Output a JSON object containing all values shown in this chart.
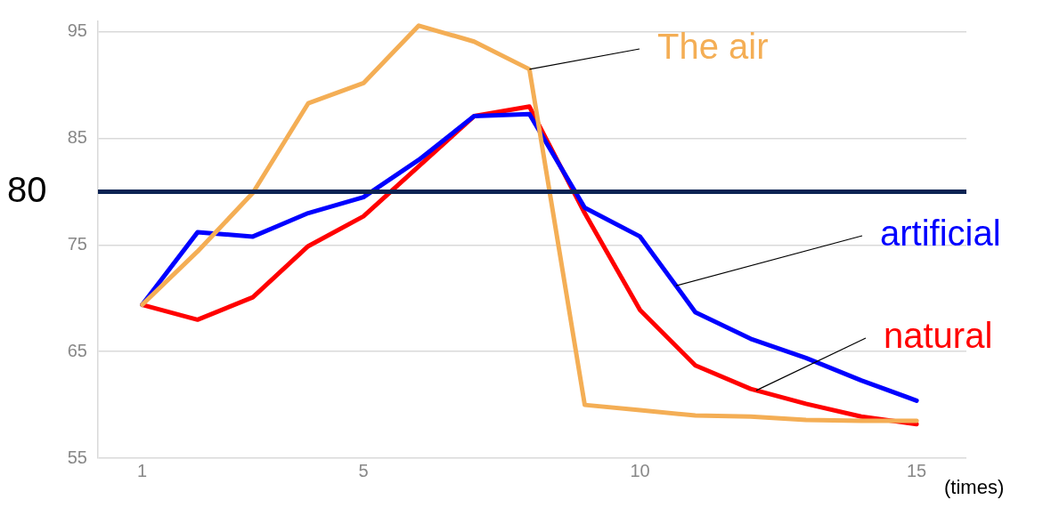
{
  "chart_data": {
    "type": "line",
    "xlabel": "(times)",
    "x": [
      1,
      2,
      3,
      4,
      5,
      6,
      7,
      8,
      9,
      10,
      11,
      12,
      13,
      14,
      15
    ],
    "series": [
      {
        "name": "The air",
        "color": "#f4ae55",
        "values": [
          69.4,
          74.4,
          79.9,
          88.3,
          90.2,
          95.6,
          94.1,
          91.5,
          60.0,
          59.5,
          59.0,
          58.9,
          58.6,
          58.5,
          58.5
        ]
      },
      {
        "name": "artificial",
        "color": "#0000ff",
        "values": [
          69.4,
          76.2,
          75.8,
          78.0,
          79.5,
          83.0,
          87.1,
          87.3,
          78.5,
          75.8,
          68.7,
          66.2,
          64.4,
          62.3,
          60.4
        ]
      },
      {
        "name": "natural",
        "color": "#ff0000",
        "values": [
          69.4,
          68.0,
          70.1,
          74.9,
          77.7,
          82.4,
          87.1,
          88.0,
          78.0,
          68.9,
          63.7,
          61.5,
          60.1,
          58.9,
          58.2
        ]
      }
    ],
    "xlim": [
      0.2,
      15.9
    ],
    "xticks": [
      1,
      5,
      10,
      15
    ],
    "ylim": [
      55,
      96
    ],
    "yticks": [
      55,
      65,
      75,
      85,
      95
    ],
    "grid": "y",
    "legend": false,
    "marker": "none",
    "line_style": "solid",
    "ref_lines": [
      {
        "axis": "y",
        "value": 80,
        "label": "80",
        "color": "#0b2353"
      }
    ]
  }
}
